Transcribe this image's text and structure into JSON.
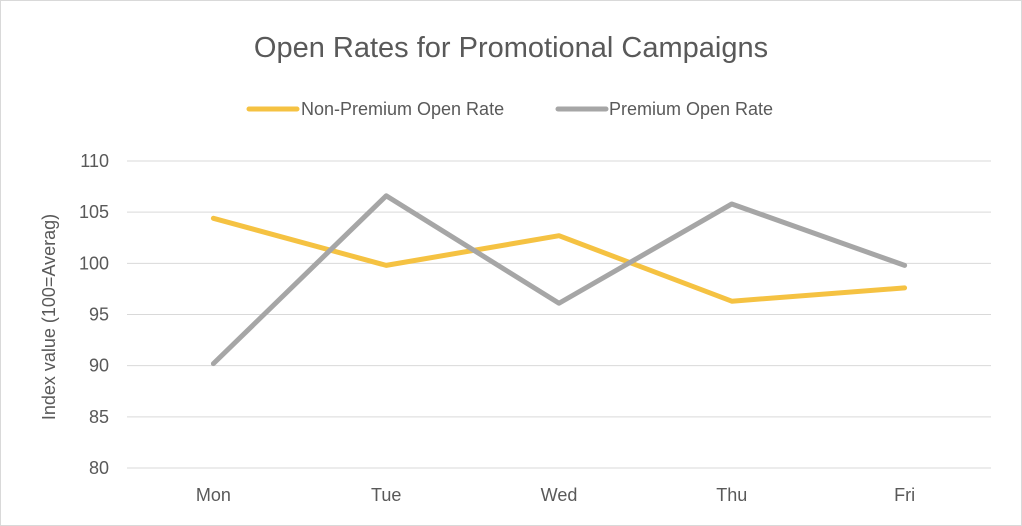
{
  "chart_data": {
    "type": "line",
    "title": "Open Rates for Promotional Campaigns",
    "xlabel": "",
    "ylabel": "Index value (100=Averag)",
    "categories": [
      "Mon",
      "Tue",
      "Wed",
      "Thu",
      "Fri"
    ],
    "ylim": [
      80,
      110
    ],
    "yticks": [
      "80",
      "85",
      "90",
      "95",
      "100",
      "105",
      "110"
    ],
    "grid": true,
    "legend_position": "top",
    "series": [
      {
        "name": "Non-Premium Open Rate",
        "color": "#f5c242",
        "values": [
          104.4,
          99.8,
          102.7,
          96.3,
          97.6
        ]
      },
      {
        "name": "Premium Open Rate",
        "color": "#a6a6a6",
        "values": [
          90.2,
          106.6,
          96.1,
          105.8,
          99.8
        ]
      }
    ]
  }
}
